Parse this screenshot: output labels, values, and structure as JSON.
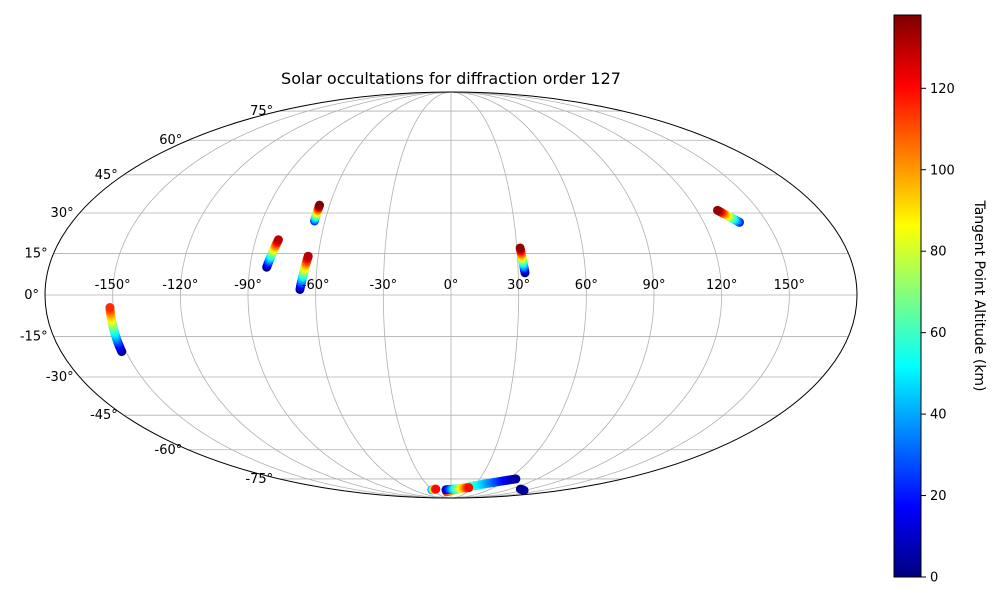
{
  "chart_data": {
    "type": "scatter",
    "projection": "mollweide",
    "title": "Solar occultations for diffraction order 127",
    "grid": true,
    "xticks": [
      {
        "value": -150,
        "label": "-150°"
      },
      {
        "value": -120,
        "label": "-120°"
      },
      {
        "value": -90,
        "label": "-90°"
      },
      {
        "value": -60,
        "label": "-60°"
      },
      {
        "value": -30,
        "label": "-30°"
      },
      {
        "value": 0,
        "label": "0°"
      },
      {
        "value": 30,
        "label": "30°"
      },
      {
        "value": 60,
        "label": "60°"
      },
      {
        "value": 90,
        "label": "90°"
      },
      {
        "value": 120,
        "label": "120°"
      },
      {
        "value": 150,
        "label": "150°"
      }
    ],
    "yticks": [
      {
        "value": 75,
        "label": "75°"
      },
      {
        "value": 60,
        "label": "60°"
      },
      {
        "value": 45,
        "label": "45°"
      },
      {
        "value": 30,
        "label": "30°"
      },
      {
        "value": 15,
        "label": "15°"
      },
      {
        "value": 0,
        "label": "0°"
      },
      {
        "value": -15,
        "label": "-15°"
      },
      {
        "value": -30,
        "label": "-30°"
      },
      {
        "value": -45,
        "label": "-45°"
      },
      {
        "value": -60,
        "label": "-60°"
      },
      {
        "value": -75,
        "label": "-75°"
      }
    ],
    "colorbar": {
      "label": "Tangent Point Altitude (km)",
      "colormap": "jet",
      "range": [
        0,
        138
      ],
      "ticks": [
        {
          "value": 0,
          "label": "0"
        },
        {
          "value": 20,
          "label": "20"
        },
        {
          "value": 40,
          "label": "40"
        },
        {
          "value": 60,
          "label": "60"
        },
        {
          "value": 80,
          "label": "80"
        },
        {
          "value": 100,
          "label": "100"
        },
        {
          "value": 120,
          "label": "120"
        }
      ]
    },
    "tracks": [
      {
        "lon_start": -152.0,
        "lat_start": -20.5,
        "lon_end": -151.5,
        "lat_end": -4.5,
        "alt_start": 0,
        "alt_end": 115
      },
      {
        "lon_start": -82.5,
        "lat_start": 10.0,
        "lon_end": -79.5,
        "lat_end": 20.0,
        "alt_start": 0,
        "alt_end": 130
      },
      {
        "lon_start": -67.0,
        "lat_start": 2.0,
        "lon_end": -64.5,
        "lat_end": 14.0,
        "alt_start": 0,
        "alt_end": 130
      },
      {
        "lon_start": -65.0,
        "lat_start": 27.0,
        "lon_end": -65.0,
        "lat_end": 33.0,
        "alt_start": 25,
        "alt_end": 138
      },
      {
        "lon_start": 33.0,
        "lat_start": 8.0,
        "lon_end": 31.5,
        "lat_end": 17.0,
        "alt_start": 0,
        "alt_end": 135
      },
      {
        "lon_start": 137.0,
        "lat_start": 26.5,
        "lon_end": 130.0,
        "lat_end": 31.0,
        "alt_start": 20,
        "alt_end": 135
      },
      {
        "lon_start": -30.0,
        "lat_start": -82.0,
        "lon_end": -23.0,
        "lat_end": -81.5,
        "alt_start": 30,
        "alt_end": 120
      },
      {
        "lon_start": -8.0,
        "lat_start": -83.5,
        "lon_end": 68.0,
        "lat_end": -75.0,
        "alt_start": 115,
        "alt_end": 5
      },
      {
        "lon_start": -8.0,
        "lat_start": -82.0,
        "lon_end": 25.0,
        "lat_end": -80.5,
        "alt_start": 5,
        "alt_end": 120
      },
      {
        "lon_start": 105.0,
        "lat_start": -81.5,
        "lon_end": 120.0,
        "lat_end": -82.5,
        "alt_start": 0,
        "alt_end": 5
      }
    ]
  }
}
